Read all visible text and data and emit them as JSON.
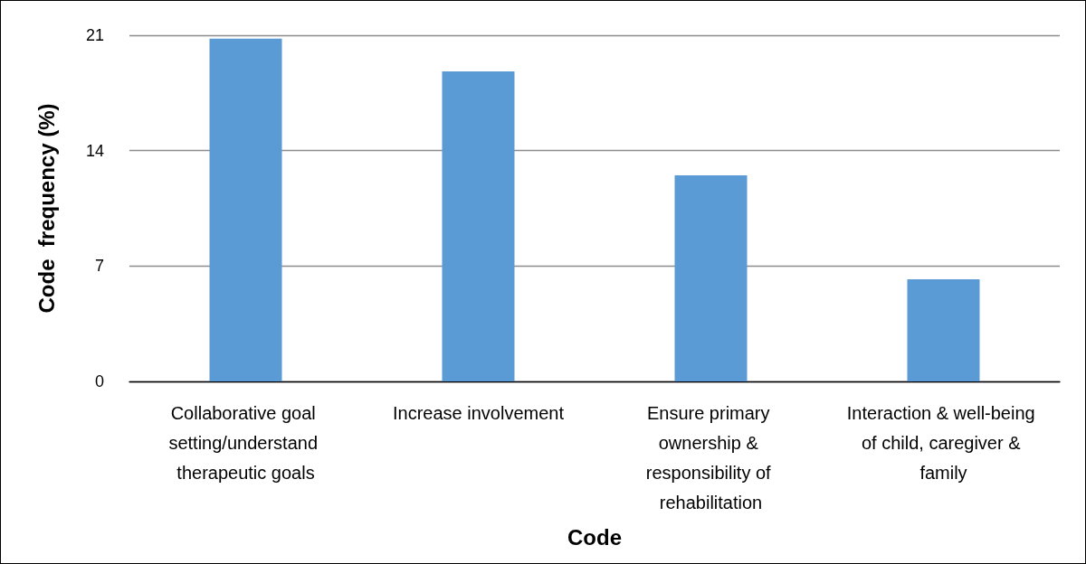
{
  "chart_data": {
    "type": "bar",
    "xlabel": "Code",
    "ylabel": "Code  frequency (%)",
    "categories": [
      "Collaborative goal setting/understand therapeutic goals",
      "Increase involvement",
      "Ensure primary ownership & responsibility of rehabilitation",
      "Interaction & well-being of child, caregiver & family"
    ],
    "values": [
      20.8,
      18.8,
      12.5,
      6.2
    ],
    "color": "#5b9bd5",
    "ylim": [
      0,
      21
    ],
    "yticks": [
      0,
      7,
      14,
      21
    ],
    "grid": "y"
  }
}
